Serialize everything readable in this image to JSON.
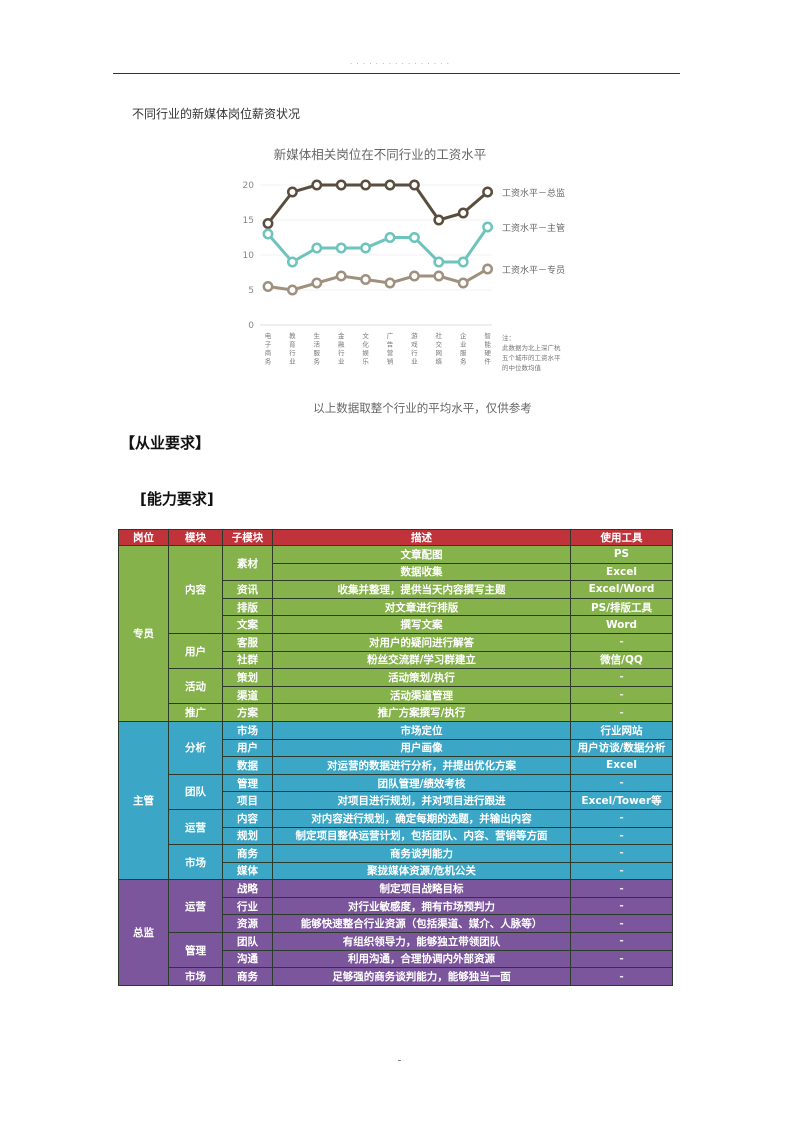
{
  "page": {
    "header_text": "· · · · · · · · · · · · · · · ·",
    "caption": "不同行业的新媒体岗位薪资状况",
    "chart_footnote": "以上数据取整个行业的平均水平，仅供参考",
    "heading_main": "【从业要求】",
    "heading_sub": "[能力要求]",
    "page_marker": "."
  },
  "chart_data": {
    "type": "line",
    "title": "新媒体相关岗位在不同行业的工资水平",
    "xlabel": "",
    "ylabel": "",
    "ylim": [
      0,
      20
    ],
    "yticks": [
      0,
      5,
      10,
      15,
      20
    ],
    "grid": true,
    "legend_position": "right",
    "categories": [
      "电子商务",
      "教育行业",
      "生活服务",
      "金融行业",
      "文化娱乐",
      "广告营销",
      "游戏行业",
      "社交网络",
      "企业服务",
      "智能硬件"
    ],
    "series": [
      {
        "name": "工资水平－总监",
        "color": "#5a4d3e",
        "values": [
          14.5,
          19,
          20,
          20,
          20,
          20,
          20,
          15,
          16,
          19
        ]
      },
      {
        "name": "工资水平－主管",
        "color": "#6cc4bc",
        "values": [
          13,
          9,
          11,
          11,
          11,
          12.5,
          12.5,
          9,
          9,
          14
        ]
      },
      {
        "name": "工资水平－专员",
        "color": "#a0907e",
        "values": [
          5.5,
          5,
          6,
          7,
          6.5,
          6,
          7,
          7,
          6,
          8
        ]
      }
    ],
    "annotation": [
      "注：",
      "此数据为北上深广杭",
      "五个城市的工资水平",
      "的中位数均值"
    ]
  },
  "table": {
    "headers": [
      "岗位",
      "模块",
      "子模块",
      "描述",
      "使用工具"
    ],
    "header_color": "#c0333b",
    "groups": [
      {
        "role": "专员",
        "color": "#86b24c",
        "modules": [
          {
            "name": "内容",
            "rows": [
              {
                "sub": "素材",
                "desc": "文章配图",
                "tool": "PS"
              },
              {
                "sub": "",
                "desc": "数据收集",
                "tool": "Excel"
              },
              {
                "sub": "资讯",
                "desc": "收集并整理，提供当天内容撰写主题",
                "tool": "Excel/Word"
              },
              {
                "sub": "排版",
                "desc": "对文章进行排版",
                "tool": "PS/排版工具"
              },
              {
                "sub": "文案",
                "desc": "撰写文案",
                "tool": "Word"
              }
            ]
          },
          {
            "name": "用户",
            "rows": [
              {
                "sub": "客服",
                "desc": "对用户的疑问进行解答",
                "tool": "-"
              },
              {
                "sub": "社群",
                "desc": "粉丝交流群/学习群建立",
                "tool": "微信/QQ"
              }
            ]
          },
          {
            "name": "活动",
            "rows": [
              {
                "sub": "策划",
                "desc": "活动策划/执行",
                "tool": "-"
              },
              {
                "sub": "渠道",
                "desc": "活动渠道管理",
                "tool": "-"
              }
            ]
          },
          {
            "name": "推广",
            "rows": [
              {
                "sub": "方案",
                "desc": "推广方案撰写/执行",
                "tool": "-"
              }
            ]
          }
        ]
      },
      {
        "role": "主管",
        "color": "#3ba6c6",
        "modules": [
          {
            "name": "分析",
            "rows": [
              {
                "sub": "市场",
                "desc": "市场定位",
                "tool": "行业网站"
              },
              {
                "sub": "用户",
                "desc": "用户画像",
                "tool": "用户访谈/数据分析"
              },
              {
                "sub": "数据",
                "desc": "对运营的数据进行分析，并提出优化方案",
                "tool": "Excel"
              }
            ]
          },
          {
            "name": "团队",
            "rows": [
              {
                "sub": "管理",
                "desc": "团队管理/绩效考核",
                "tool": "-"
              },
              {
                "sub": "项目",
                "desc": "对项目进行规划，并对项目进行跟进",
                "tool": "Excel/Tower等"
              }
            ]
          },
          {
            "name": "运营",
            "rows": [
              {
                "sub": "内容",
                "desc": "对内容进行规划，确定每期的选题，并输出内容",
                "tool": "-"
              },
              {
                "sub": "规划",
                "desc": "制定项目整体运营计划，包括团队、内容、营销等方面",
                "tool": "-"
              }
            ]
          },
          {
            "name": "市场",
            "rows": [
              {
                "sub": "商务",
                "desc": "商务谈判能力",
                "tool": "-"
              },
              {
                "sub": "媒体",
                "desc": "聚拢媒体资源/危机公关",
                "tool": "-"
              }
            ]
          }
        ]
      },
      {
        "role": "总监",
        "color": "#7c569c",
        "modules": [
          {
            "name": "运营",
            "rows": [
              {
                "sub": "战略",
                "desc": "制定项目战略目标",
                "tool": "-"
              },
              {
                "sub": "行业",
                "desc": "对行业敏感度，拥有市场预判力",
                "tool": "-"
              },
              {
                "sub": "资源",
                "desc": "能够快速整合行业资源（包括渠道、媒介、人脉等）",
                "tool": "-"
              }
            ]
          },
          {
            "name": "管理",
            "rows": [
              {
                "sub": "团队",
                "desc": "有组织领导力，能够独立带领团队",
                "tool": "-"
              },
              {
                "sub": "沟通",
                "desc": "利用沟通，合理协调内外部资源",
                "tool": "-"
              }
            ]
          },
          {
            "name": "市场",
            "rows": [
              {
                "sub": "商务",
                "desc": "足够强的商务谈判能力，能够独当一面",
                "tool": "-"
              }
            ]
          }
        ]
      }
    ]
  }
}
